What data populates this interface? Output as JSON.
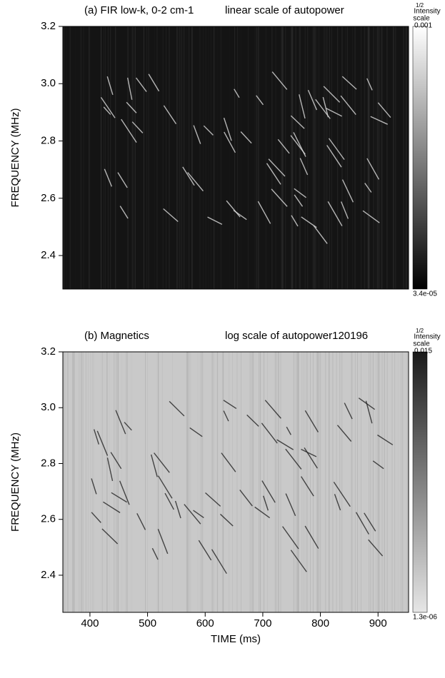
{
  "chart_data": [
    {
      "type": "spectrogram",
      "title": "(a) FIR low-k, 0-2 cm-1",
      "subtitle": "linear scale of autopower",
      "ylabel": "FREQUENCY (MHz)",
      "xlim": [
        353,
        953
      ],
      "ylim": [
        2.283,
        3.2
      ],
      "yticks": [
        {
          "value": 2.4,
          "label": "2.4"
        },
        {
          "value": 2.6,
          "label": "2.6"
        },
        {
          "value": 2.8,
          "label": "2.8"
        },
        {
          "value": 3,
          "label": "3.0"
        },
        {
          "value": 3.2,
          "label": "3.2"
        }
      ],
      "colorbar": {
        "exponent": "1/2",
        "label_line1": "Intensity",
        "label_line2": "scale",
        "max_label": "0.001",
        "min_label": "3.4e-05",
        "colors": [
          "#000000",
          "#ffffff"
        ]
      },
      "background": "#141414"
    },
    {
      "type": "spectrogram",
      "title": "(b) Magnetics",
      "subtitle": "log scale of autopower120196",
      "ylabel": "FREQUENCY (MHz)",
      "xlabel": "TIME (ms)",
      "xlim": [
        353,
        953
      ],
      "ylim": [
        2.267,
        3.2
      ],
      "xticks": [
        400,
        500,
        600,
        700,
        800,
        900
      ],
      "yticks": [
        {
          "value": 2.4,
          "label": "2.4"
        },
        {
          "value": 2.6,
          "label": "2.6"
        },
        {
          "value": 2.8,
          "label": "2.8"
        },
        {
          "value": 3,
          "label": "3.0"
        },
        {
          "value": 3.2,
          "label": "3.2"
        }
      ],
      "colorbar": {
        "exponent": "1/2",
        "label_line1": "Intensity",
        "label_line2": "scale",
        "max_label": "0.015",
        "min_label": "1.3e-06",
        "colors": [
          "#e6e6e6",
          "#1a1a1a"
        ]
      },
      "background": "#c9c9c9"
    }
  ]
}
